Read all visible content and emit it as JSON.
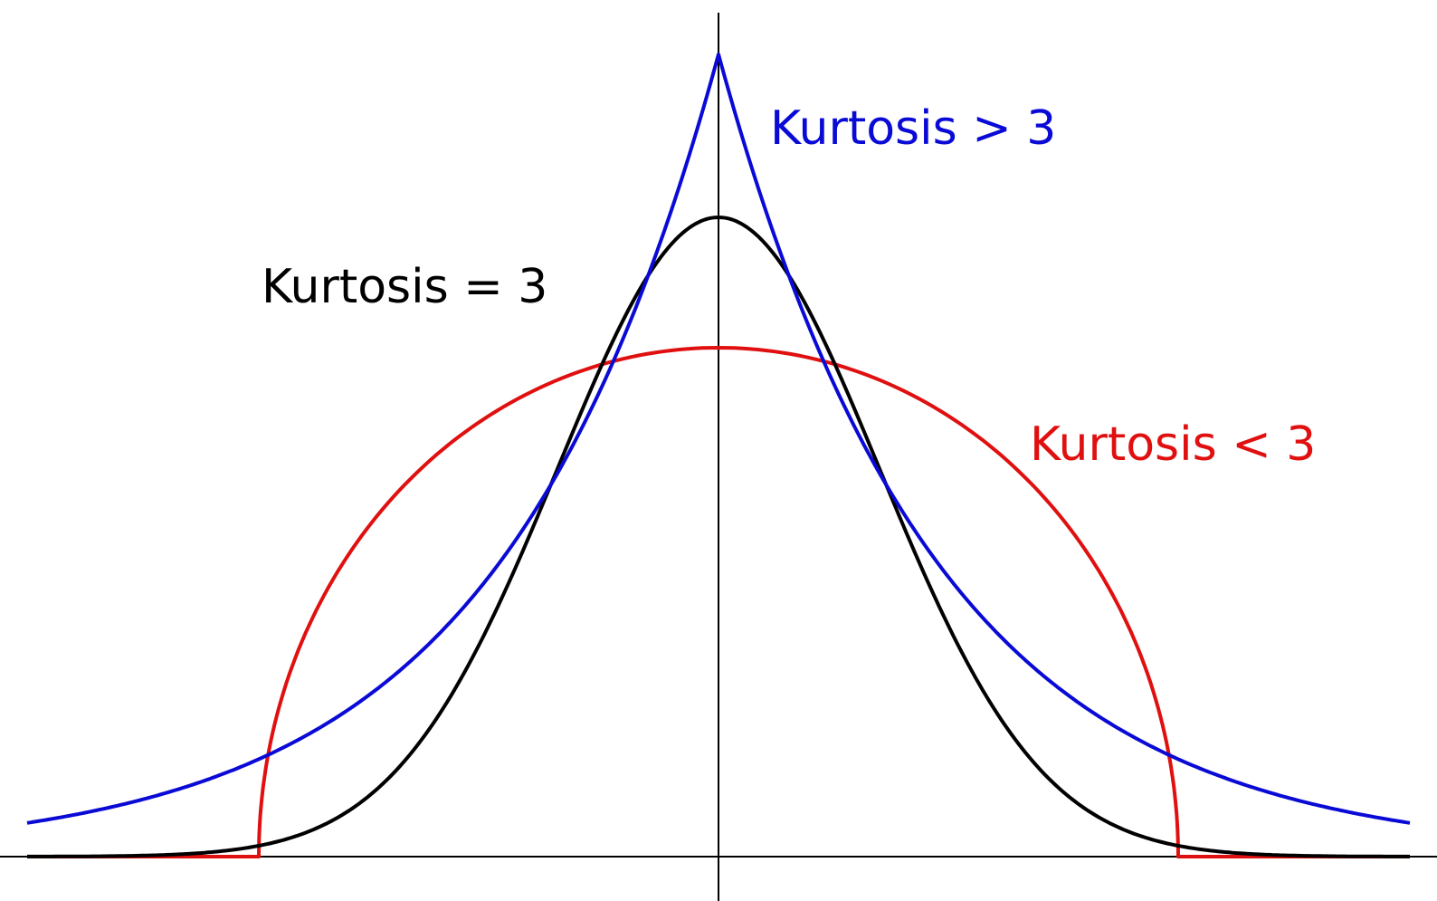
{
  "colors": {
    "kurtosis_greater": "#0a0ad6",
    "kurtosis_equal": "#000000",
    "kurtosis_less": "#e01010",
    "axis": "#000000"
  },
  "labels": {
    "kurtosis_greater": "Kurtosis > 3",
    "kurtosis_equal": "Kurtosis = 3",
    "kurtosis_less": "Kurtosis < 3"
  },
  "curves": [
    {
      "id": "kurtosis_greater",
      "shape": "laplace"
    },
    {
      "id": "kurtosis_equal",
      "shape": "normal"
    },
    {
      "id": "kurtosis_less",
      "shape": "semicircle"
    }
  ]
}
